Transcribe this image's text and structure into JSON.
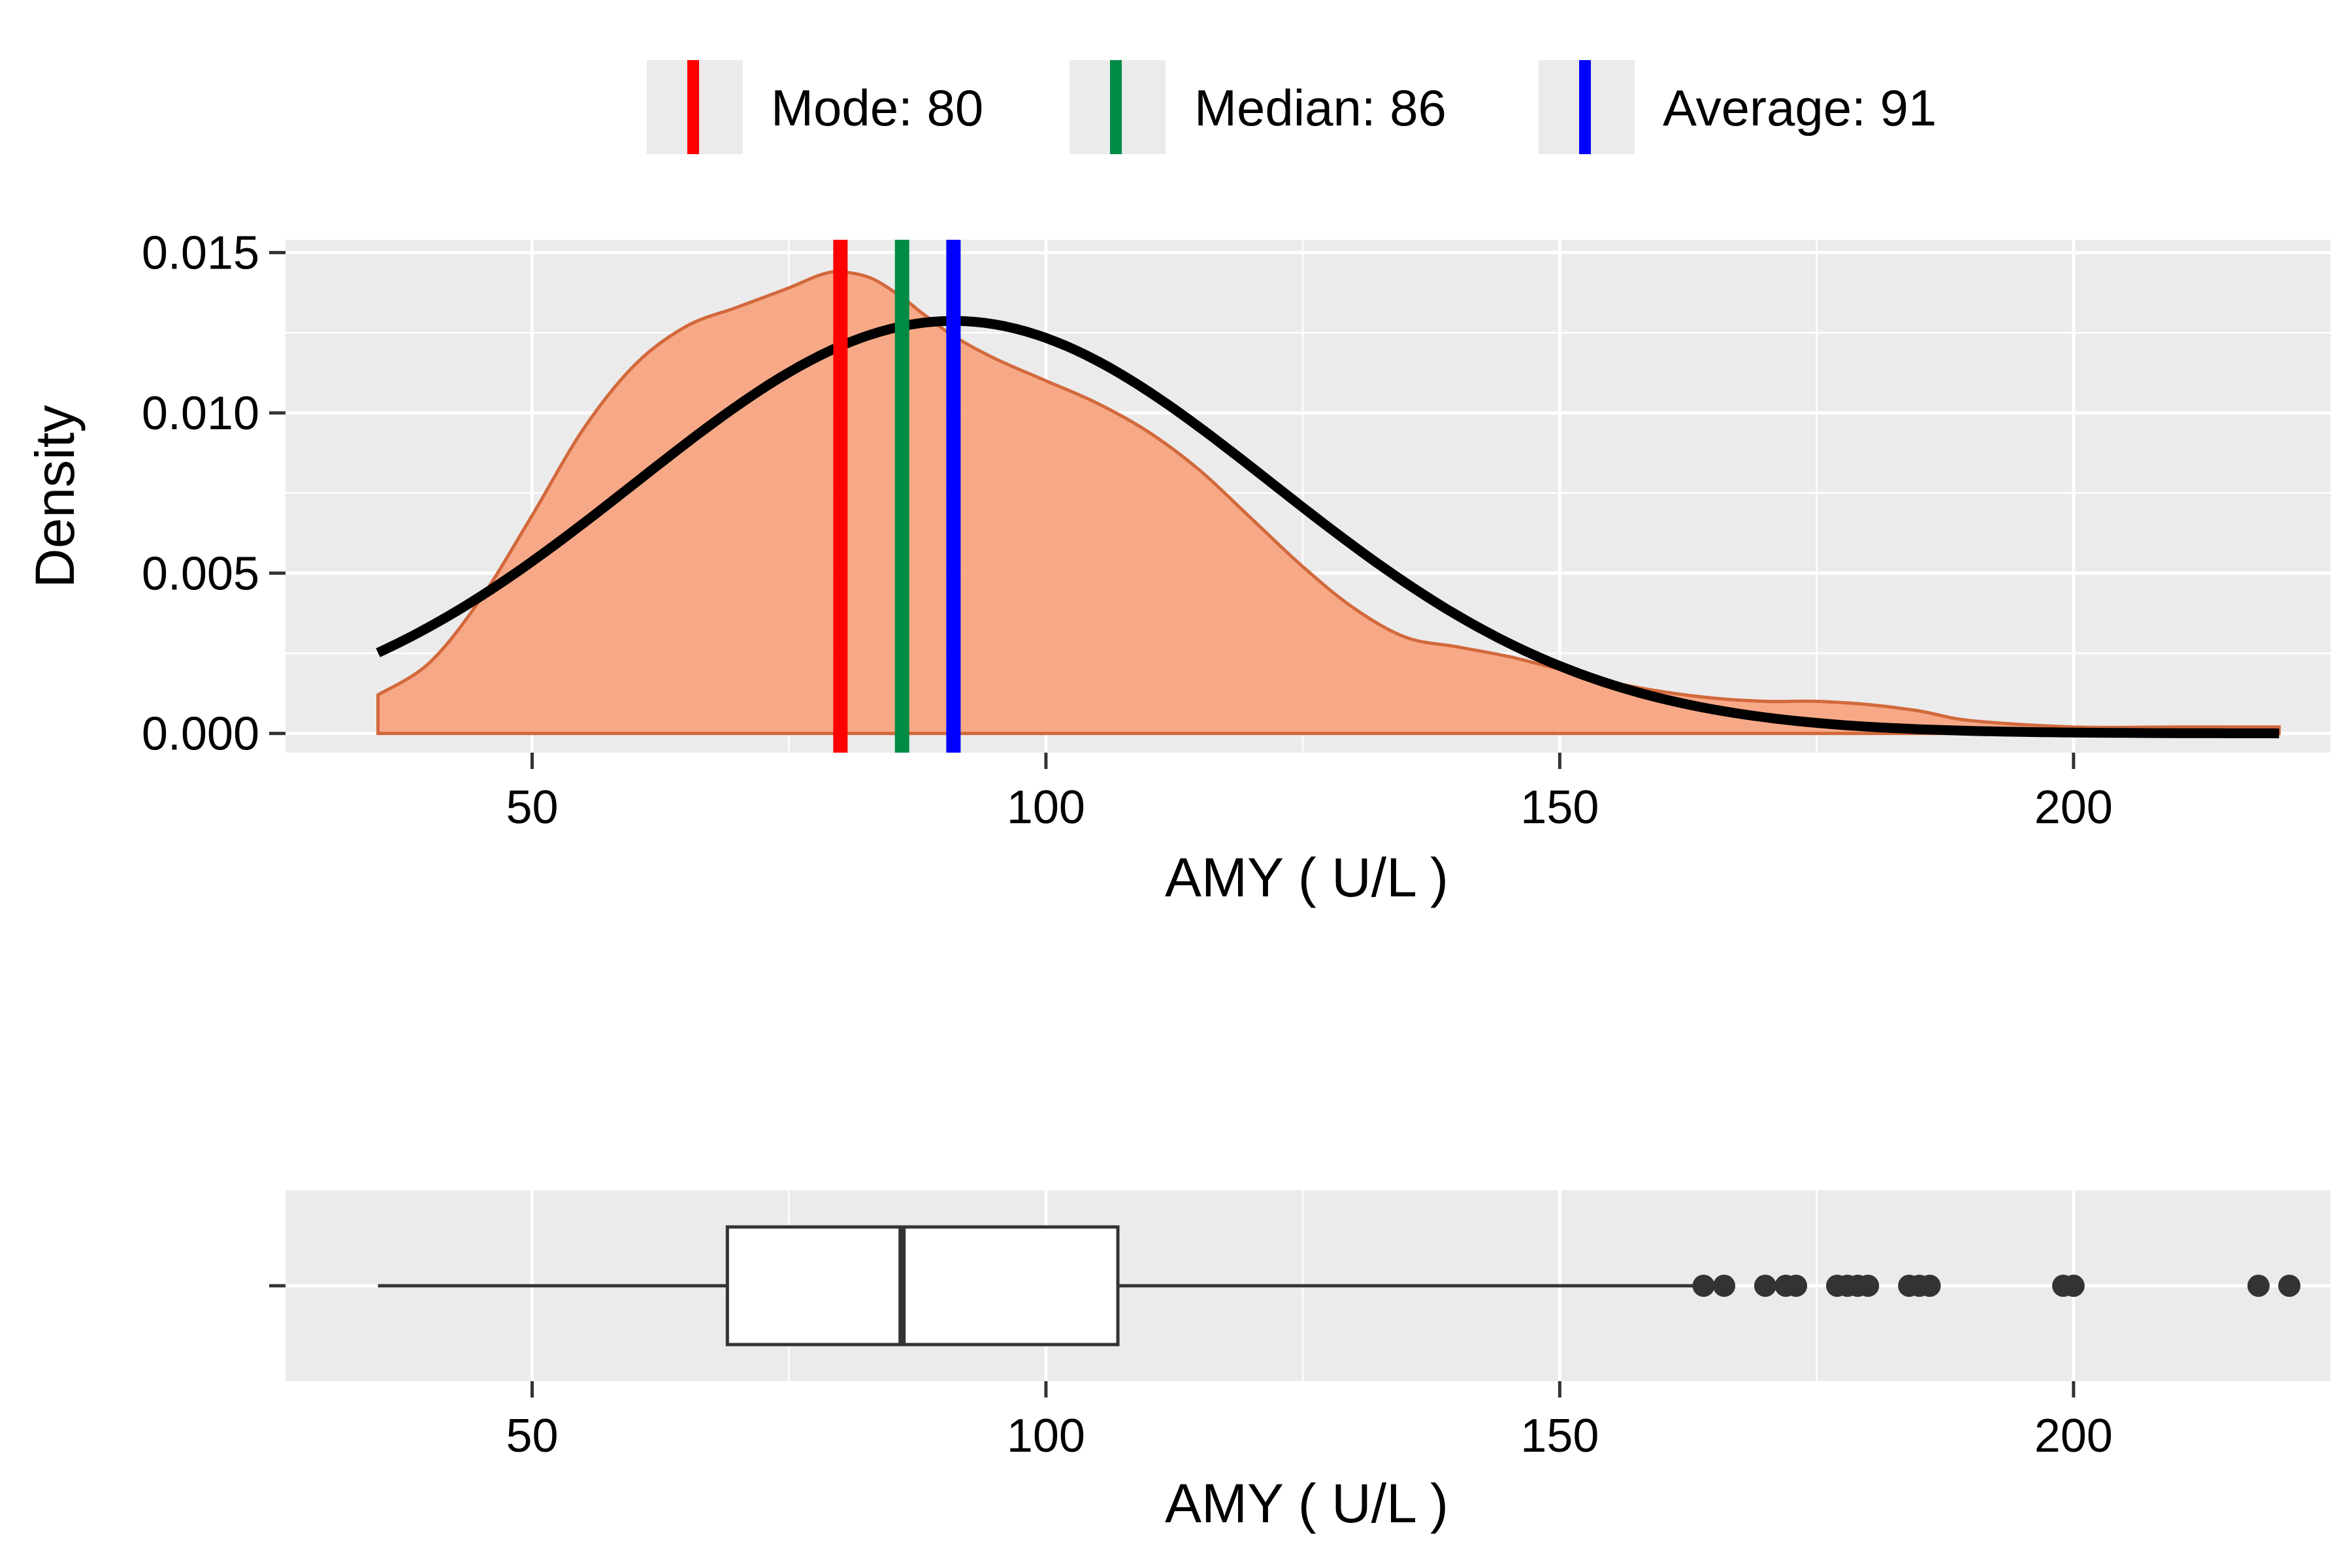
{
  "legend": {
    "items": [
      {
        "label": "Mode:  80",
        "color": "#ff0000"
      },
      {
        "label": "Median:  86",
        "color": "#008b45"
      },
      {
        "label": "Average:  91",
        "color": "#0000ff"
      }
    ]
  },
  "chart_data": [
    {
      "type": "area",
      "title": "",
      "xlabel": "AMY ( U/L )",
      "ylabel": "Density",
      "xlim": [
        26,
        225
      ],
      "ylim": [
        -0.0006,
        0.0154
      ],
      "x_ticks": [
        "50",
        "100",
        "150",
        "200"
      ],
      "y_ticks": [
        "0.000",
        "0.005",
        "0.010",
        "0.015"
      ],
      "grid": true,
      "legend_position": "top",
      "density_fill": "#f8a47f",
      "density_stroke": "#d2693c",
      "kde": {
        "x": [
          35,
          40,
          45,
          50,
          55,
          60,
          65,
          70,
          75,
          78,
          80,
          83,
          86,
          88,
          91,
          95,
          100,
          105,
          110,
          115,
          120,
          125,
          130,
          135,
          140,
          145,
          150,
          155,
          160,
          165,
          170,
          175,
          180,
          185,
          190,
          200,
          210,
          220
        ],
        "y": [
          0.0012,
          0.0022,
          0.0042,
          0.0068,
          0.0095,
          0.0115,
          0.0127,
          0.0133,
          0.0139,
          0.0143,
          0.0144,
          0.0142,
          0.0136,
          0.0131,
          0.0124,
          0.0117,
          0.011,
          0.0103,
          0.0094,
          0.0082,
          0.0067,
          0.0052,
          0.0039,
          0.003,
          0.0027,
          0.0024,
          0.002,
          0.0016,
          0.0013,
          0.0011,
          0.001,
          0.001,
          0.0009,
          0.0007,
          0.0004,
          0.0002,
          0.0002,
          0.0002
        ]
      },
      "normal_curve": {
        "mean": 91,
        "sd": 31,
        "color": "#000000",
        "x_range": [
          35,
          220
        ]
      },
      "vlines": [
        {
          "name": "Mode",
          "x": 80,
          "color": "#ff0000"
        },
        {
          "name": "Median",
          "x": 86,
          "color": "#008b45"
        },
        {
          "name": "Average",
          "x": 91,
          "color": "#0000ff"
        }
      ]
    },
    {
      "type": "box",
      "xlabel": "AMY ( U/L )",
      "xlim": [
        26,
        225
      ],
      "x_ticks": [
        "50",
        "100",
        "150",
        "200"
      ],
      "grid": true,
      "box": {
        "whisker_low": 35,
        "q1": 69,
        "median": 86,
        "q3": 107,
        "whisker_high": 163
      },
      "outliers": [
        164,
        166,
        170,
        172,
        173,
        177,
        178,
        179,
        180,
        184,
        185,
        186,
        199,
        200,
        218,
        221
      ]
    }
  ]
}
